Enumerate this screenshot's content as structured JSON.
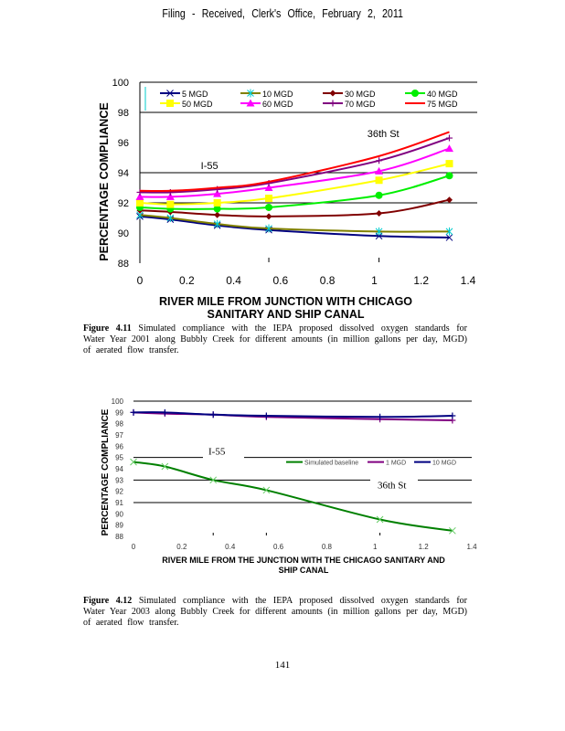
{
  "page": {
    "header": "Filing - Received, Clerk's Office, February 2, 2011",
    "page_number": "141"
  },
  "figures": [
    {
      "caption_label": "Figure 4.11",
      "caption_text": "Simulated compliance with the IEPA proposed dissolved oxygen standards for Water Year 2001 along Bubbly Creek for different amounts (in million gallons per day, MGD) of aerated flow transfer."
    },
    {
      "caption_label": "Figure 4.12",
      "caption_text": "Simulated compliance with the IEPA proposed dissolved oxygen standards for Water Year 2003 along Bubbly Creek for different amounts (in million gallons per day, MGD) of aerated flow transfer."
    }
  ],
  "chart_data": [
    {
      "type": "line",
      "title": "",
      "xlabel": "RIVER MILE FROM JUNCTION WITH CHICAGO SANITARY AND SHIP CANAL",
      "ylabel": "PERCENTAGE COMPLIANCE",
      "xlim": [
        0,
        1.4
      ],
      "ylim": [
        88,
        100
      ],
      "xticks": [
        "0",
        "0.2",
        "0.4",
        "0.6",
        "0.8",
        "1",
        "1.2",
        "1.4"
      ],
      "yticks": [
        "88",
        "90",
        "92",
        "94",
        "96",
        "98",
        "100"
      ],
      "grid": "horizontal lines at 92, 94, 98",
      "legend_position": "top",
      "annotations": [
        {
          "text": "I-55",
          "x": 0.26,
          "y": 94.5
        },
        {
          "text": "36th St",
          "x": 0.97,
          "y": 96.6
        }
      ],
      "x": [
        0,
        0.13,
        0.33,
        0.55,
        1.02,
        1.32
      ],
      "series": [
        {
          "name": "5 MGD",
          "color": "#000080",
          "marker": "x",
          "values": [
            91.1,
            90.9,
            90.5,
            90.2,
            89.8,
            89.7
          ]
        },
        {
          "name": "10 MGD",
          "color": "#808000",
          "marker": "*",
          "values": [
            91.2,
            91.0,
            90.6,
            90.3,
            90.1,
            90.1
          ]
        },
        {
          "name": "30 MGD",
          "color": "#800000",
          "marker": "diamond",
          "values": [
            91.5,
            91.4,
            91.2,
            91.1,
            91.3,
            92.2
          ]
        },
        {
          "name": "40 MGD",
          "color": "#00ee00",
          "marker": "circle",
          "values": [
            91.7,
            91.6,
            91.6,
            91.7,
            92.5,
            93.8
          ]
        },
        {
          "name": "50 MGD",
          "color": "#ffff00",
          "marker": "square",
          "values": [
            92.0,
            91.9,
            92.0,
            92.3,
            93.5,
            94.6
          ]
        },
        {
          "name": "60 MGD",
          "color": "#ff00ff",
          "marker": "triangle",
          "values": [
            92.4,
            92.4,
            92.6,
            93.0,
            94.1,
            95.6
          ]
        },
        {
          "name": "70 MGD",
          "color": "#800080",
          "marker": "plus",
          "values": [
            92.7,
            92.7,
            92.9,
            93.3,
            94.8,
            96.3
          ]
        },
        {
          "name": "75 MGD",
          "color": "#ff0000",
          "marker": "none",
          "values": [
            92.8,
            92.8,
            93.0,
            93.4,
            95.1,
            96.7
          ]
        }
      ]
    },
    {
      "type": "line",
      "title": "",
      "xlabel": "RIVER MILE FROM THE JUNCTION WITH THE CHICAGO SANITARY AND SHIP CANAL",
      "ylabel": "PERCENTAGE COMPLIANCE",
      "xlim": [
        0,
        1.4
      ],
      "ylim": [
        88,
        100
      ],
      "xticks": [
        "0",
        "0.2",
        "0.4",
        "0.6",
        "0.8",
        "1",
        "1.2",
        "1.4"
      ],
      "yticks": [
        "88",
        "89",
        "90",
        "91",
        "92",
        "93",
        "94",
        "95",
        "96",
        "97",
        "98",
        "99",
        "100"
      ],
      "grid": "horizontal lines at 91, 93, 95, 100",
      "legend_position": "center-right",
      "annotations": [
        {
          "text": "I-55",
          "x": 0.33,
          "y": 95.5
        },
        {
          "text": "36th St",
          "x": 1.02,
          "y": 92.5
        }
      ],
      "x": [
        0,
        0.13,
        0.33,
        0.55,
        1.02,
        1.32
      ],
      "series": [
        {
          "name": "Simulated baseline",
          "color": "#008000",
          "marker": "x",
          "values": [
            94.6,
            94.2,
            93.0,
            92.1,
            89.5,
            88.5
          ]
        },
        {
          "name": "1 MGD",
          "color": "#800080",
          "marker": "plus",
          "values": [
            99.0,
            98.9,
            98.8,
            98.6,
            98.4,
            98.3
          ]
        },
        {
          "name": "10 MGD",
          "color": "#000080",
          "marker": "plus",
          "values": [
            99.0,
            99.0,
            98.8,
            98.7,
            98.6,
            98.7
          ]
        }
      ]
    }
  ]
}
